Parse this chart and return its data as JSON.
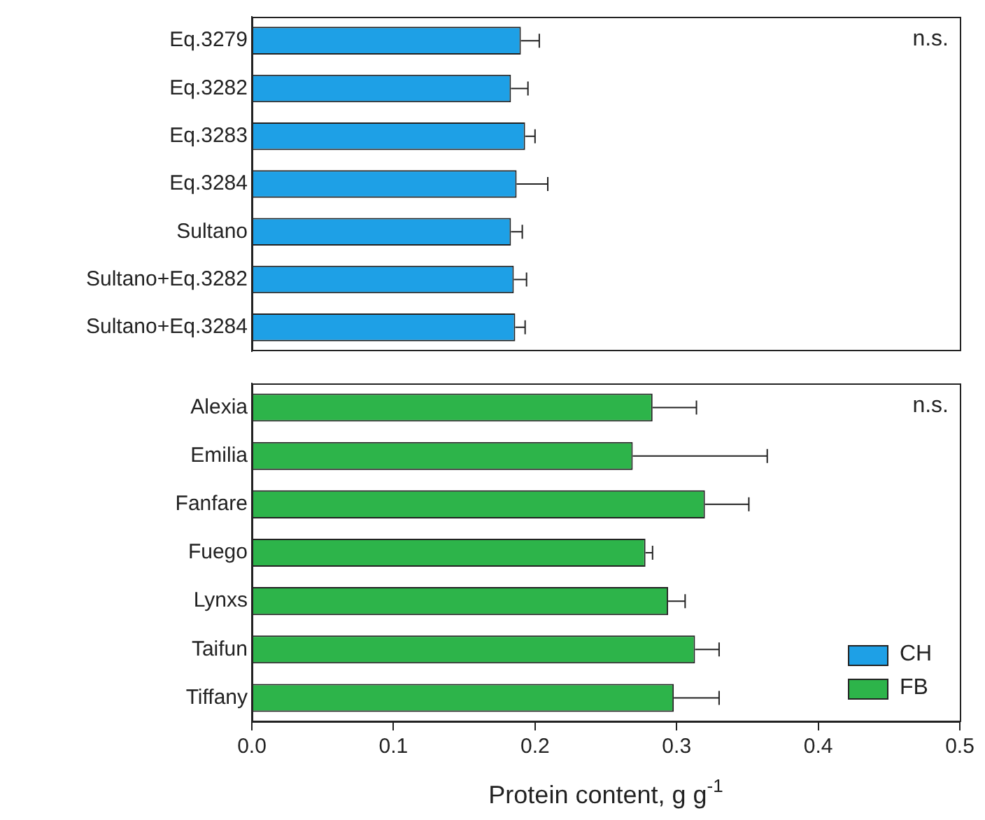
{
  "chart_data": [
    {
      "type": "bar",
      "orientation": "horizontal",
      "categories": [
        "Eq.3279",
        "Eq.3282",
        "Eq.3283",
        "Eq.3284",
        "Sultano",
        "Sultano+Eq.3282",
        "Sultano+Eq.3284"
      ],
      "series": [
        {
          "name": "CH",
          "color": "#1ea0e6",
          "values": [
            0.19,
            0.183,
            0.193,
            0.187,
            0.183,
            0.185,
            0.186
          ],
          "errors": [
            [
              0.19,
              0.203
            ],
            [
              0.183,
              0.195
            ],
            [
              0.193,
              0.2
            ],
            [
              0.187,
              0.209
            ],
            [
              0.183,
              0.191
            ],
            [
              0.185,
              0.194
            ],
            [
              0.186,
              0.193
            ]
          ]
        }
      ],
      "xlim": [
        0,
        0.5
      ],
      "tick_labels": "y",
      "annotations": [
        "n.s."
      ],
      "grid": false
    },
    {
      "type": "bar",
      "orientation": "horizontal",
      "categories": [
        "Alexia",
        "Emilia",
        "Fanfare",
        "Fuego",
        "Lynxs",
        "Taifun",
        "Tiffany"
      ],
      "series": [
        {
          "name": "FB",
          "color": "#2db44a",
          "values": [
            0.283,
            0.269,
            0.32,
            0.278,
            0.294,
            0.313,
            0.298
          ],
          "errors": [
            [
              0.283,
              0.314
            ],
            [
              0.269,
              0.364
            ],
            [
              0.32,
              0.351
            ],
            [
              0.278,
              0.283
            ],
            [
              0.294,
              0.306
            ],
            [
              0.313,
              0.33
            ],
            [
              0.298,
              0.33
            ]
          ]
        }
      ],
      "xlim": [
        0,
        0.5
      ],
      "xticks": [
        {
          "value": 0,
          "label": "0.0"
        },
        0.1,
        0.2,
        0.3,
        0.4,
        0.5
      ],
      "xlabel": "Protein content, g g$^{-1}$",
      "annotations": [
        "n.s."
      ],
      "legend": "bottom right",
      "grid": false
    }
  ]
}
